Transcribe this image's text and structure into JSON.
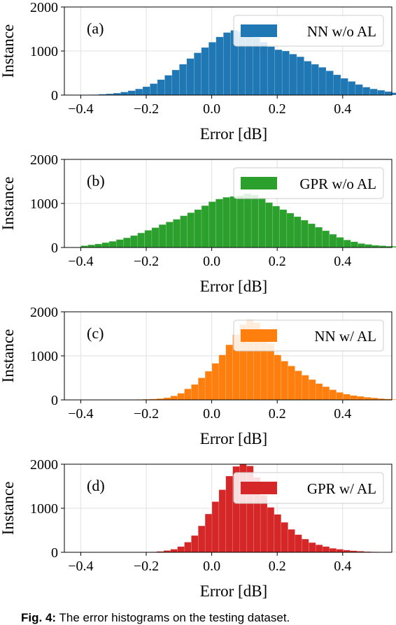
{
  "caption": {
    "label": "Fig. 4:",
    "text": "The error histograms on the testing dataset."
  },
  "chart_data": [
    {
      "type": "bar",
      "panel_label": "(a)",
      "legend": "NN w/o AL",
      "legend_position": "top-right",
      "color": "#1f77b4",
      "xlabel": "Error [dB]",
      "ylabel": "Instance",
      "xlim": [
        -0.45,
        0.55
      ],
      "ylim": [
        0,
        2000
      ],
      "x_ticks": [
        "−0.4",
        "−0.2",
        "0.0",
        "0.2",
        "0.4"
      ],
      "y_ticks": [
        "0",
        "1000",
        "2000"
      ],
      "grid": true,
      "bin_width": 0.0224,
      "bin_start": -0.39,
      "values": [
        5,
        10,
        20,
        30,
        45,
        70,
        100,
        140,
        190,
        260,
        350,
        450,
        570,
        700,
        830,
        960,
        1080,
        1200,
        1320,
        1420,
        1470,
        1450,
        1390,
        1310,
        1200,
        1100,
        1030,
        1000,
        930,
        870,
        770,
        700,
        630,
        550,
        460,
        380,
        310,
        240,
        180,
        140,
        110,
        80,
        55,
        40,
        30,
        20,
        12,
        8,
        5
      ]
    },
    {
      "type": "bar",
      "panel_label": "(b)",
      "legend": "GPR w/o AL",
      "legend_position": "top-right",
      "color": "#2ca02c",
      "xlabel": "Error [dB]",
      "ylabel": "Instance",
      "xlim": [
        -0.45,
        0.55
      ],
      "ylim": [
        0,
        2000
      ],
      "x_ticks": [
        "−0.4",
        "−0.2",
        "0.0",
        "0.2",
        "0.4"
      ],
      "y_ticks": [
        "0",
        "1000",
        "2000"
      ],
      "grid": true,
      "bin_width": 0.0217,
      "bin_start": -0.4,
      "values": [
        40,
        60,
        80,
        110,
        140,
        180,
        220,
        270,
        330,
        390,
        450,
        520,
        580,
        640,
        720,
        790,
        860,
        950,
        1040,
        1100,
        1140,
        1160,
        1180,
        1220,
        1190,
        1130,
        1020,
        940,
        860,
        780,
        700,
        620,
        540,
        460,
        380,
        300,
        230,
        170,
        130,
        90,
        70,
        50,
        40,
        30,
        25,
        20,
        15,
        10
      ]
    },
    {
      "type": "bar",
      "panel_label": "(c)",
      "legend": "NN w/ AL",
      "legend_position": "top-right",
      "color": "#ff7f0e",
      "xlabel": "Error [dB]",
      "ylabel": "Instance",
      "xlim": [
        -0.45,
        0.55
      ],
      "ylim": [
        0,
        2000
      ],
      "x_ticks": [
        "−0.4",
        "−0.2",
        "0.0",
        "0.2",
        "0.4"
      ],
      "y_ticks": [
        "0",
        "1000",
        "2000"
      ],
      "grid": true,
      "bin_width": 0.0211,
      "bin_start": -0.4,
      "values": [
        5,
        5,
        5,
        5,
        5,
        5,
        5,
        5,
        10,
        15,
        20,
        30,
        50,
        90,
        150,
        250,
        350,
        500,
        650,
        830,
        1020,
        1250,
        1480,
        1710,
        1820,
        1750,
        1520,
        1280,
        1020,
        880,
        770,
        660,
        560,
        460,
        370,
        300,
        230,
        170,
        130,
        100,
        80,
        60,
        45,
        30,
        20,
        12,
        8,
        5
      ]
    },
    {
      "type": "bar",
      "panel_label": "(d)",
      "legend": "GPR w/ AL",
      "legend_position": "top-right",
      "color": "#d62728",
      "xlabel": "Error [dB]",
      "ylabel": "Instance",
      "xlim": [
        -0.45,
        0.55
      ],
      "ylim": [
        0,
        2000
      ],
      "x_ticks": [
        "−0.4",
        "−0.2",
        "0.0",
        "0.2",
        "0.4"
      ],
      "y_ticks": [
        "0",
        "1000",
        "2000"
      ],
      "grid": true,
      "bin_width": 0.0211,
      "bin_start": -0.4,
      "values": [
        3,
        3,
        3,
        3,
        3,
        3,
        3,
        3,
        5,
        8,
        10,
        20,
        40,
        70,
        130,
        230,
        380,
        600,
        870,
        1150,
        1420,
        1730,
        1950,
        2000,
        1960,
        1700,
        1300,
        1020,
        860,
        680,
        520,
        400,
        300,
        220,
        170,
        130,
        90,
        70,
        50,
        35,
        25,
        15,
        10,
        5,
        3,
        3,
        3,
        3
      ]
    }
  ]
}
